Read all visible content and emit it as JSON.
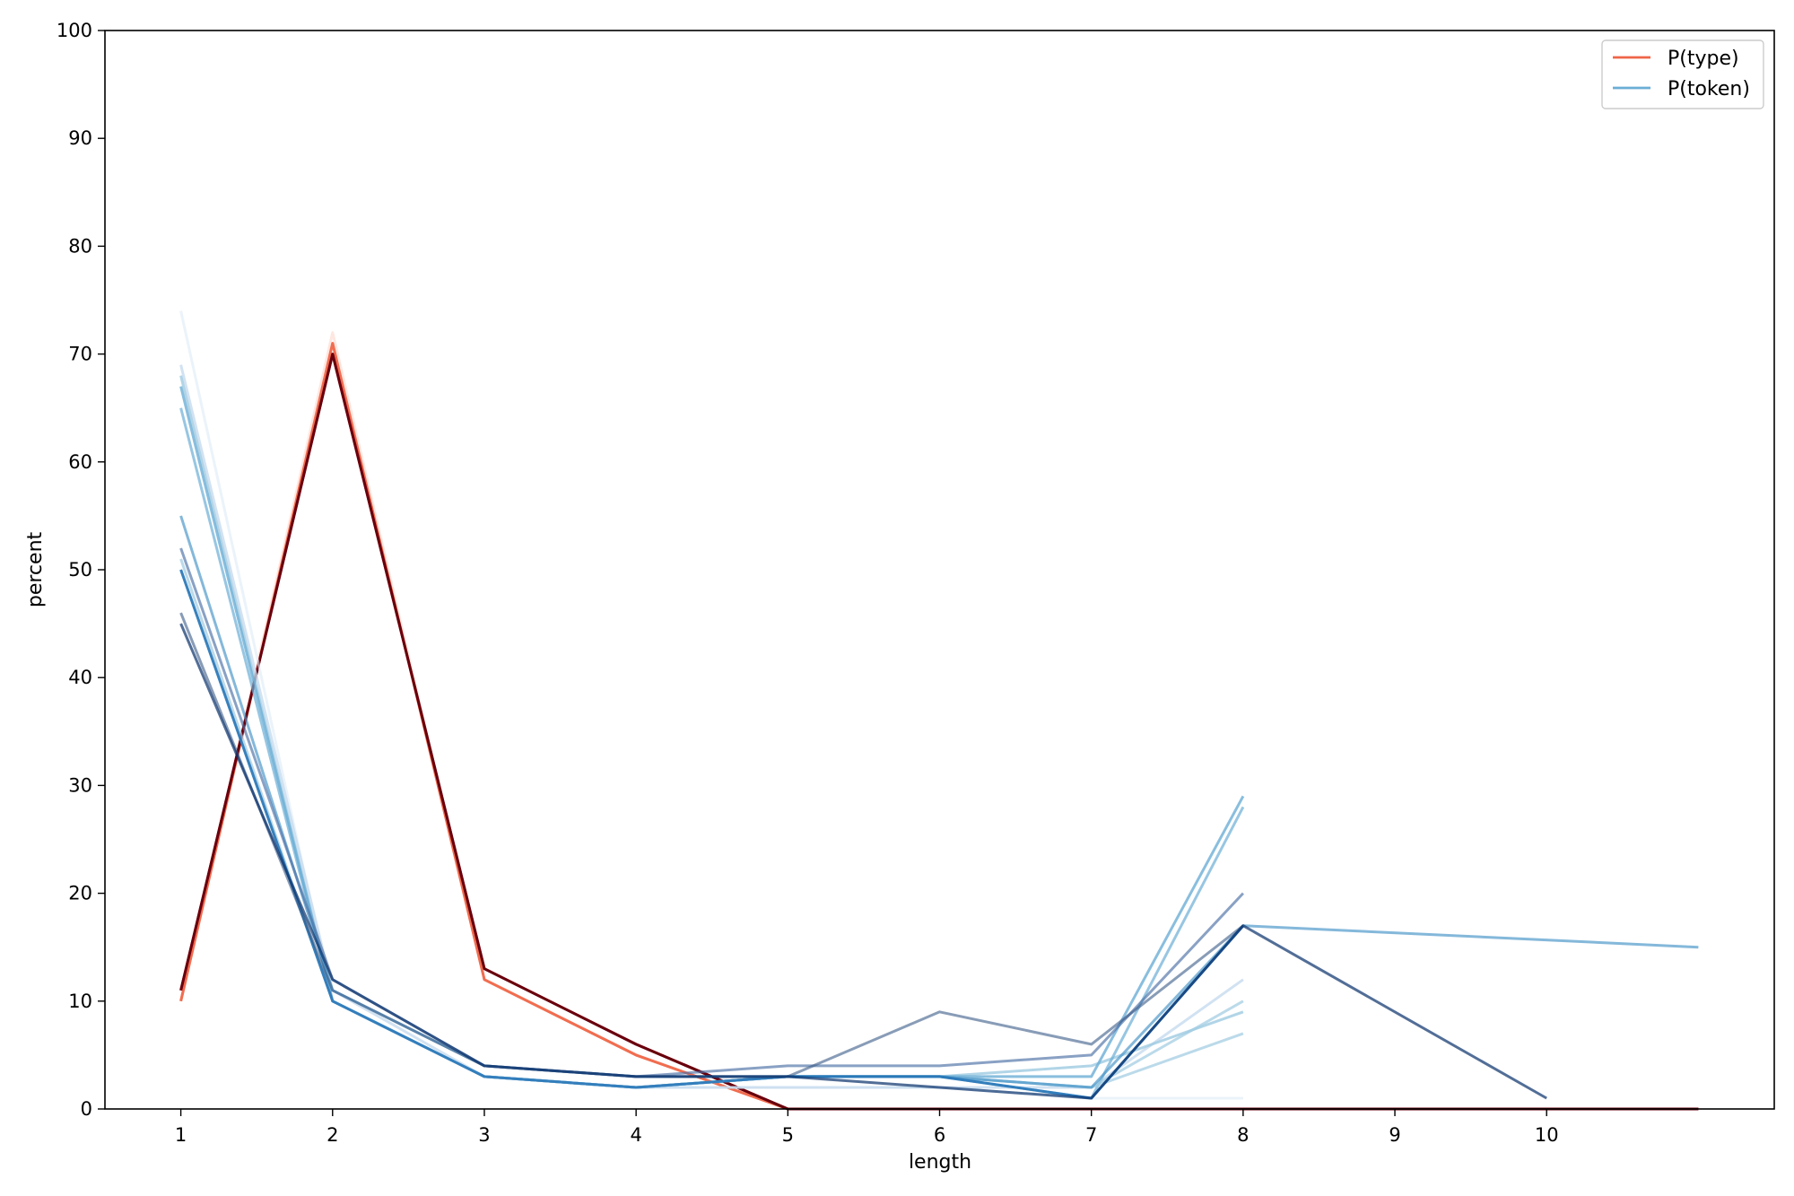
{
  "chart_data": {
    "type": "line",
    "xlabel": "length",
    "ylabel": "percent",
    "xlim": [
      0.5,
      11.5
    ],
    "ylim": [
      0,
      100
    ],
    "xticks": [
      1,
      2,
      3,
      4,
      5,
      6,
      7,
      8,
      9,
      10
    ],
    "yticks": [
      0,
      10,
      20,
      30,
      40,
      50,
      60,
      70,
      80,
      90,
      100
    ],
    "grid": false,
    "legend": {
      "placement": "top-right",
      "entries": [
        {
          "label": "P(type)",
          "color": "#ef6548"
        },
        {
          "label": "P(token)",
          "color": "#6baed6"
        }
      ]
    },
    "series": [
      {
        "group": "P(type)",
        "color": "#fdd0c2",
        "opacity": 0.5,
        "x": [
          1,
          2,
          3,
          4,
          5,
          6,
          7,
          8,
          9,
          10,
          11
        ],
        "y": [
          10,
          72,
          12,
          5,
          0,
          0,
          0,
          0,
          0,
          0,
          0
        ]
      },
      {
        "group": "P(type)",
        "color": "#fcae91",
        "opacity": 0.85,
        "x": [
          1,
          2,
          3,
          4,
          5,
          6,
          7,
          8,
          9,
          10,
          11
        ],
        "y": [
          10,
          71,
          12,
          5,
          0,
          0,
          0,
          0,
          0,
          0,
          0
        ]
      },
      {
        "group": "P(type)",
        "color": "#ef6548",
        "opacity": 0.9,
        "x": [
          1,
          2,
          3,
          4,
          5,
          6,
          7,
          8,
          9,
          10,
          11
        ],
        "y": [
          10,
          71,
          12,
          5,
          0,
          0,
          0,
          0,
          0,
          0,
          0
        ]
      },
      {
        "group": "P(type)",
        "color": "#cb181d",
        "opacity": 1,
        "x": [
          1,
          2,
          3,
          4,
          5,
          6,
          7,
          8,
          9,
          10,
          11
        ],
        "y": [
          11,
          70,
          13,
          6,
          0,
          0,
          0,
          0,
          0,
          0,
          0
        ]
      },
      {
        "group": "P(type)",
        "color": "#67000d",
        "opacity": 1,
        "x": [
          1,
          2,
          3,
          4,
          5,
          6,
          7,
          8,
          9,
          10,
          11
        ],
        "y": [
          11,
          70,
          13,
          6,
          0,
          0,
          0,
          0,
          0,
          0,
          0
        ]
      },
      {
        "group": "P(token)",
        "color": "#deebf7",
        "opacity": 0.6,
        "x": [
          1,
          2,
          3,
          4,
          5,
          6,
          7,
          8
        ],
        "y": [
          74,
          10,
          3,
          2,
          2,
          2,
          1,
          1
        ]
      },
      {
        "group": "P(token)",
        "color": "#c6dbef",
        "opacity": 0.8,
        "x": [
          1,
          2,
          3,
          4,
          5,
          6,
          7,
          8
        ],
        "y": [
          69,
          11,
          3,
          2,
          2,
          2,
          2,
          12
        ]
      },
      {
        "group": "P(token)",
        "color": "#9ecae1",
        "opacity": 0.8,
        "x": [
          1,
          2,
          3,
          4,
          5,
          6,
          7,
          8
        ],
        "y": [
          68,
          10,
          3,
          2,
          3,
          3,
          4,
          9
        ]
      },
      {
        "group": "P(token)",
        "color": "#6baed6",
        "opacity": 0.8,
        "x": [
          1,
          2,
          3,
          4,
          5,
          6,
          7,
          8
        ],
        "y": [
          67,
          10,
          3,
          2,
          3,
          3,
          3,
          29
        ]
      },
      {
        "group": "P(token)",
        "color": "#6baed6",
        "opacity": 0.7,
        "x": [
          1,
          2,
          3,
          4,
          5,
          6,
          7,
          8
        ],
        "y": [
          65,
          10,
          3,
          2,
          3,
          3,
          1,
          28
        ]
      },
      {
        "group": "P(token)",
        "color": "#9ecae1",
        "opacity": 0.7,
        "x": [
          1,
          2,
          3,
          4,
          5,
          6,
          7,
          8
        ],
        "y": [
          50,
          10,
          3,
          2,
          3,
          3,
          2,
          10
        ]
      },
      {
        "group": "P(token)",
        "color": "#9ecae1",
        "opacity": 0.7,
        "x": [
          1,
          2,
          3,
          4,
          5,
          6,
          7,
          8
        ],
        "y": [
          51,
          10,
          3,
          2,
          3,
          3,
          2,
          7
        ]
      },
      {
        "group": "P(token)",
        "color": "#4292c6",
        "opacity": 0.65,
        "x": [
          1,
          2,
          3,
          4,
          5,
          6,
          7,
          8,
          11
        ],
        "y": [
          55,
          11,
          4,
          3,
          3,
          3,
          2,
          17,
          15
        ]
      },
      {
        "group": "P(token)",
        "color": "#4a6fa5",
        "opacity": 0.65,
        "x": [
          1,
          2,
          3,
          4,
          5,
          6,
          7,
          8
        ],
        "y": [
          52,
          12,
          4,
          3,
          4,
          4,
          5,
          20
        ]
      },
      {
        "group": "P(token)",
        "color": "#2171b5",
        "opacity": 0.85,
        "x": [
          1,
          2,
          3,
          4,
          5,
          6,
          7,
          8
        ],
        "y": [
          50,
          10,
          3,
          2,
          3,
          3,
          1,
          17
        ]
      },
      {
        "group": "P(token)",
        "color": "#395a87",
        "opacity": 0.6,
        "x": [
          1,
          2,
          3,
          4,
          5,
          6,
          7,
          8
        ],
        "y": [
          46,
          11,
          4,
          3,
          3,
          9,
          6,
          17
        ]
      },
      {
        "group": "P(token)",
        "color": "#08306b",
        "opacity": 0.7,
        "x": [
          1,
          2,
          3,
          4,
          5,
          6,
          7,
          8,
          10
        ],
        "y": [
          45,
          12,
          4,
          3,
          3,
          2,
          1,
          17,
          1
        ]
      }
    ]
  }
}
